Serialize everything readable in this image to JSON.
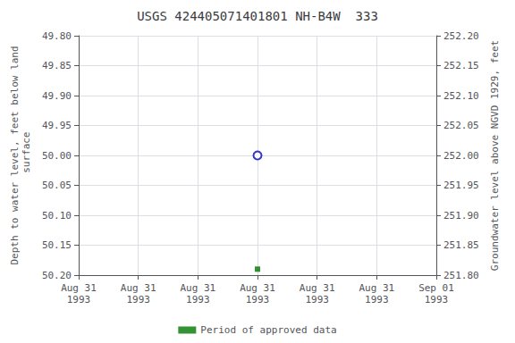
{
  "chart_data": {
    "type": "scatter",
    "title": "USGS 424405071401801 NH-B4W  333",
    "y_label": "Depth to water level, feet below land\n surface",
    "y2_label": "Groundwater level above NGVD 1929, feet",
    "categories": [
      "Aug 31\n1993",
      "Aug 31\n1993",
      "Aug 31\n1993",
      "Aug 31\n1993",
      "Aug 31\n1993",
      "Aug 31\n1993",
      "Sep 01\n1993"
    ],
    "series": [
      {
        "color": "#0000cc",
        "marker": "open_circle",
        "values": [
          null,
          null,
          null,
          50.0,
          null,
          null,
          null
        ]
      },
      {
        "name": "Period of approved data",
        "color": "#007700",
        "marker": "square",
        "values": [
          null,
          null,
          null,
          50.19,
          null,
          null,
          null
        ]
      }
    ],
    "ylim": [
      50.2,
      49.8
    ],
    "yticks": [
      {
        "value": 49.8,
        "label": "49.80"
      },
      49.85,
      {
        "value": 49.9,
        "label": "49.90"
      },
      49.95,
      {
        "value": 50.0,
        "label": "50.00"
      },
      50.05,
      {
        "value": 50.1,
        "label": "50.10"
      },
      50.15,
      {
        "value": 50.2,
        "label": "50.20"
      }
    ],
    "y2lim": [
      251.8,
      252.2
    ],
    "y2ticks": [
      {
        "value": 252.2,
        "label": "252.20"
      },
      252.15,
      {
        "value": 252.1,
        "label": "252.10"
      },
      252.05,
      {
        "value": 252.0,
        "label": "252.00"
      },
      251.95,
      {
        "value": 251.9,
        "label": "251.90"
      },
      251.85,
      {
        "value": 251.8,
        "label": "251.80"
      }
    ],
    "grid": true,
    "legend": "bottom"
  }
}
